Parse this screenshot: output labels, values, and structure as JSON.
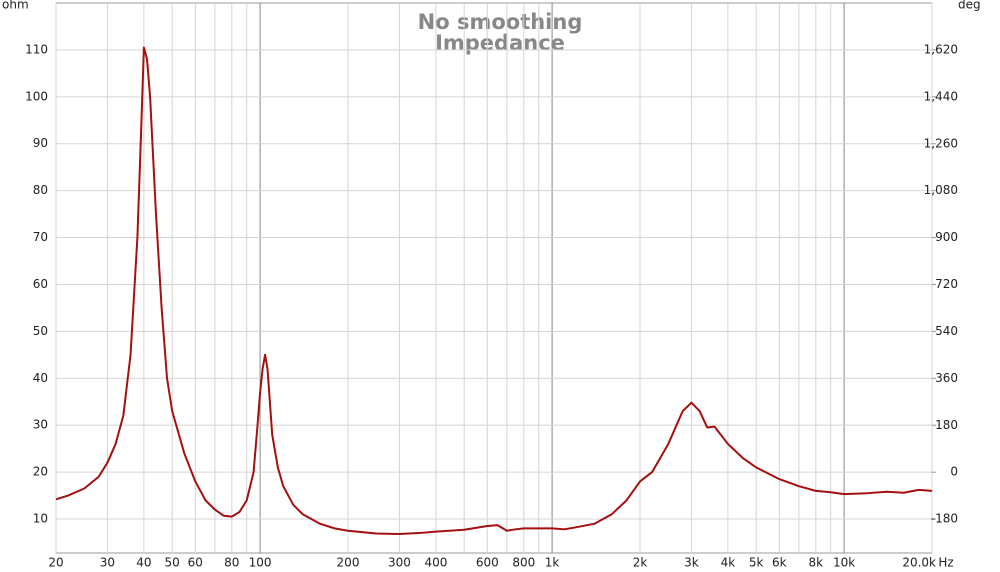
{
  "chart_data": {
    "type": "line",
    "title": "No smoothing",
    "subtitle": "Impedance",
    "y_label": "ohm",
    "y2_label": "deg",
    "x_unit": "Hz",
    "log_x": true,
    "grid": true,
    "xlim": [
      20,
      20000
    ],
    "ylim": [
      2.75,
      120
    ],
    "y2lim": [
      -310,
      1800
    ],
    "xticks": [
      20,
      30,
      40,
      50,
      60,
      80,
      100,
      200,
      300,
      400,
      600,
      800,
      {
        "value": 1000,
        "label": "1k"
      },
      {
        "value": 2000,
        "label": "2k"
      },
      {
        "value": 3000,
        "label": "3k"
      },
      {
        "value": 4000,
        "label": "4k"
      },
      {
        "value": 5000,
        "label": "5k"
      },
      {
        "value": 6000,
        "label": "6k"
      },
      {
        "value": 8000,
        "label": "8k"
      },
      {
        "value": 10000,
        "label": "10k"
      },
      {
        "value": 20000,
        "label": "20.0k"
      }
    ],
    "x_minor_grid": [
      70,
      90,
      500,
      700,
      900,
      7000,
      9000
    ],
    "yticks": [
      10,
      20,
      30,
      40,
      50,
      60,
      70,
      80,
      90,
      100,
      110
    ],
    "y2ticks": [
      -180,
      0,
      180,
      360,
      540,
      720,
      900,
      {
        "value": 1080,
        "label": "1,080"
      },
      {
        "value": 1260,
        "label": "1,260"
      },
      {
        "value": 1440,
        "label": "1,440"
      },
      {
        "value": 1620,
        "label": "1,620"
      }
    ],
    "x": [
      20,
      22,
      25,
      28,
      30,
      32,
      34,
      36,
      38,
      39,
      40,
      41,
      42,
      44,
      46,
      48,
      50,
      55,
      60,
      65,
      70,
      75,
      80,
      85,
      90,
      95,
      98,
      100,
      102,
      104,
      106,
      108,
      110,
      115,
      120,
      130,
      140,
      160,
      180,
      200,
      250,
      300,
      350,
      400,
      500,
      600,
      650,
      700,
      750,
      800,
      900,
      1000,
      1100,
      1200,
      1400,
      1600,
      1800,
      2000,
      2200,
      2500,
      2800,
      3000,
      3200,
      3400,
      3600,
      4000,
      4500,
      5000,
      6000,
      7000,
      8000,
      9000,
      10000,
      12000,
      14000,
      16000,
      18000,
      20000
    ],
    "series": [
      {
        "name": "Impedance",
        "color": "#a50f0f",
        "values": [
          14.2,
          15,
          16.5,
          19,
          22,
          26,
          32,
          45,
          70,
          90,
          110.5,
          108,
          100,
          75,
          55,
          40,
          33,
          24,
          18,
          14,
          12,
          10.7,
          10.5,
          11.5,
          14,
          20,
          30,
          37,
          42,
          45,
          42,
          35,
          28,
          21,
          17,
          13,
          11,
          9,
          8,
          7.5,
          6.9,
          6.8,
          7,
          7.3,
          7.7,
          8.5,
          8.7,
          7.5,
          7.8,
          8,
          8,
          8,
          7.8,
          8.2,
          9,
          11,
          14,
          18,
          20,
          26,
          33,
          34.8,
          33,
          29.5,
          29.7,
          26,
          23,
          21,
          18.5,
          17,
          16,
          15.7,
          15.3,
          15.5,
          15.8,
          15.6,
          16.2,
          16
        ]
      }
    ]
  }
}
